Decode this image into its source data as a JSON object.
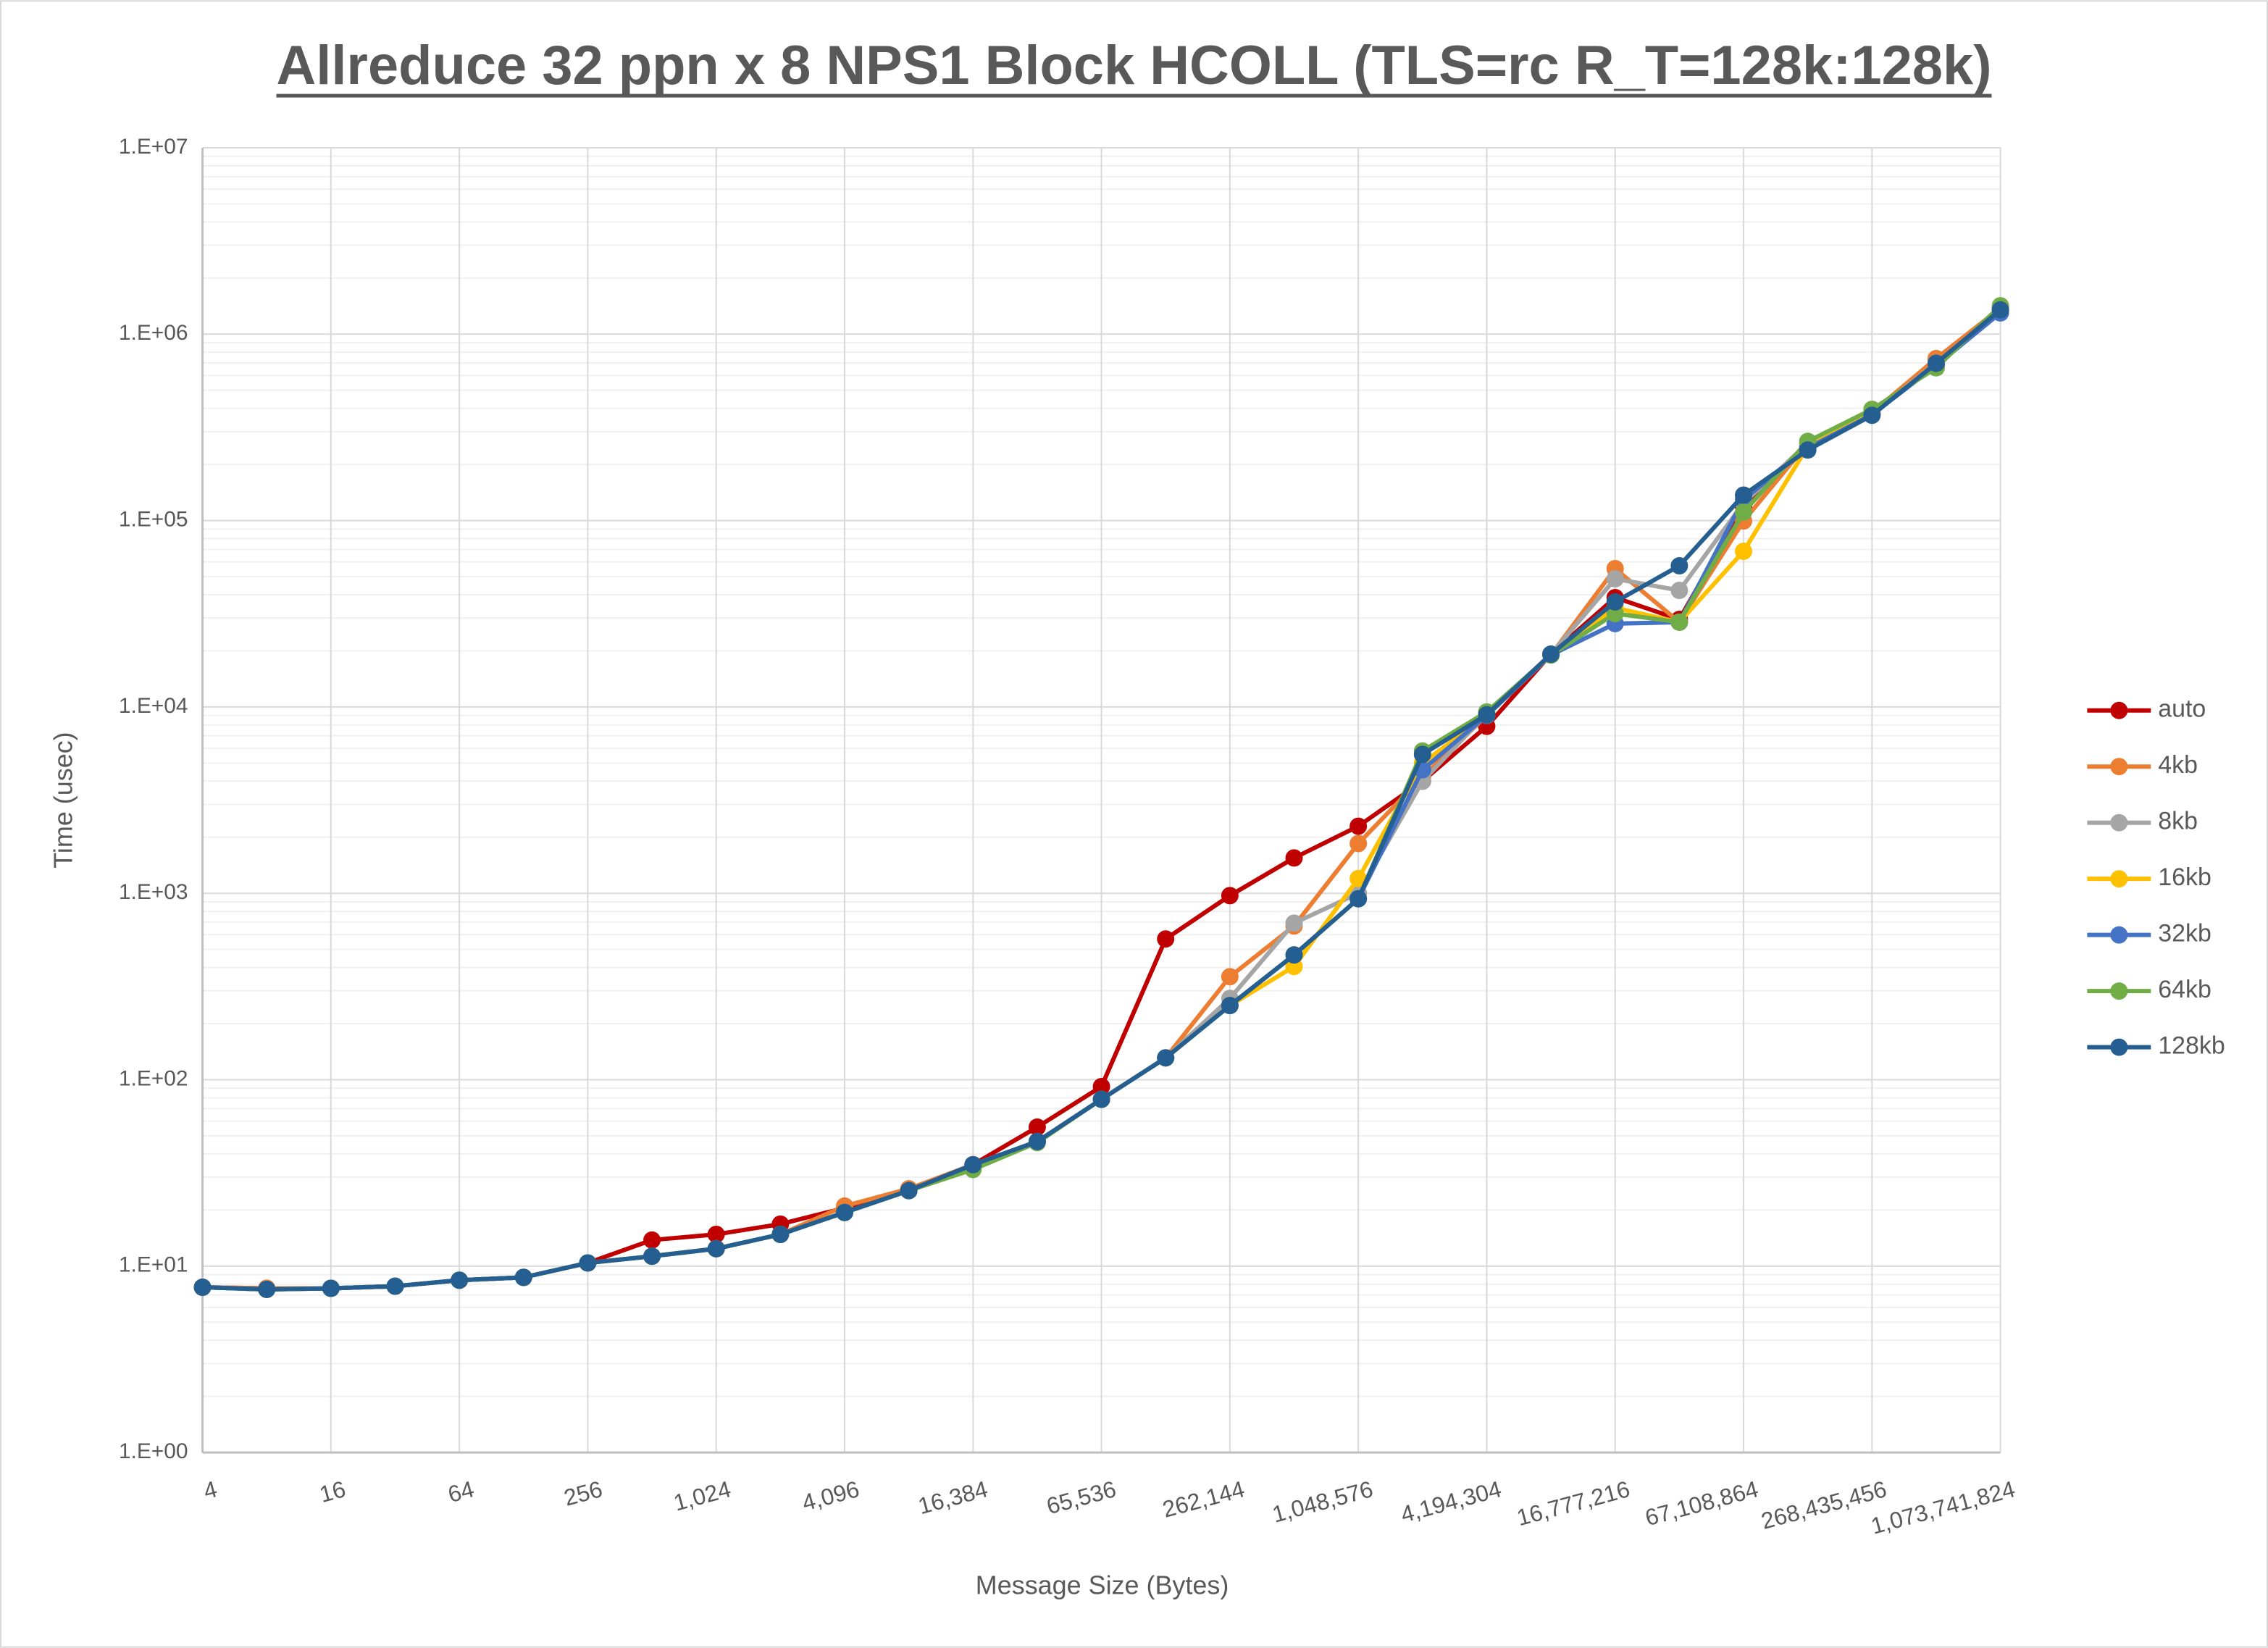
{
  "chart_data": {
    "type": "line",
    "title": "Allreduce 32 ppn x 8 NPS1 Block HCOLL (TLS=rc R_T=128k:128k)",
    "x_label": "Message Size (Bytes)",
    "y_label": "Time (usec)",
    "log_y": true,
    "grid": true,
    "legend": "right",
    "categories": [
      "4",
      null,
      "16",
      null,
      "64",
      null,
      "256",
      null,
      "1,024",
      null,
      "4,096",
      null,
      "16,384",
      null,
      "65,536",
      null,
      "262,144",
      null,
      "1,048,576",
      null,
      "4,194,304",
      null,
      "16,777,216",
      null,
      "67,108,864",
      null,
      "268,435,456",
      null,
      "1,073,741,824"
    ],
    "ylim": [
      1,
      10000000
    ],
    "yticks": [
      {
        "value": 1,
        "label": "1.E+00"
      },
      {
        "value": 10,
        "label": "1.E+01"
      },
      {
        "value": 100,
        "label": "1.E+02"
      },
      {
        "value": 1000,
        "label": "1.E+03"
      },
      {
        "value": 10000,
        "label": "1.E+04"
      },
      {
        "value": 100000,
        "label": "1.E+05"
      },
      {
        "value": 1000000,
        "label": "1.E+06"
      },
      {
        "value": 10000000,
        "label": "1.E+07"
      }
    ],
    "series": [
      {
        "name": "auto",
        "color": "#c00000",
        "values": [
          7.7,
          7.6,
          7.6,
          7.8,
          8.4,
          8.7,
          10.4,
          13.8,
          14.8,
          16.8,
          20.5,
          25.8,
          35,
          55.7,
          91.9,
          569,
          972,
          1548,
          2291,
          4000,
          7870,
          19200,
          38600,
          29500,
          119000,
          250000,
          380000,
          730000,
          1380000
        ]
      },
      {
        "name": "4kb",
        "color": "#ed7d31",
        "values": [
          7.7,
          7.6,
          7.6,
          7.8,
          8.4,
          8.7,
          10.4,
          11.3,
          12.4,
          14.8,
          21,
          26,
          35,
          46.6,
          78.5,
          131,
          357,
          668,
          1850,
          4200,
          9000,
          19000,
          55200,
          28500,
          99500,
          260000,
          380000,
          740000,
          1380000
        ]
      },
      {
        "name": "8kb",
        "color": "#a5a5a5",
        "values": [
          7.7,
          7.5,
          7.6,
          7.8,
          8.4,
          8.7,
          10.4,
          11.3,
          12.4,
          14.8,
          19.4,
          25.4,
          35,
          46.6,
          78.5,
          131,
          273,
          692,
          1000,
          3990,
          9200,
          19200,
          48700,
          42200,
          124000,
          260000,
          375000,
          700000,
          1350000
        ]
      },
      {
        "name": "16kb",
        "color": "#ffc000",
        "values": [
          7.7,
          7.5,
          7.6,
          7.8,
          8.4,
          8.7,
          10.4,
          11.3,
          12.4,
          14.8,
          19.4,
          25.4,
          35,
          46.6,
          78.5,
          131,
          250,
          405,
          1200,
          5000,
          9000,
          19000,
          34000,
          28500,
          68400,
          250000,
          375000,
          690000,
          1360000
        ]
      },
      {
        "name": "32kb",
        "color": "#4472c4",
        "values": [
          7.7,
          7.5,
          7.6,
          7.8,
          8.4,
          8.7,
          10.4,
          11.3,
          12.4,
          14.8,
          19.4,
          25.4,
          35,
          46.6,
          78.5,
          131,
          250,
          467,
          935,
          4600,
          9000,
          19000,
          28000,
          28500,
          130000,
          245000,
          370000,
          680000,
          1300000
        ]
      },
      {
        "name": "64kb",
        "color": "#70ad47",
        "values": [
          7.7,
          7.5,
          7.6,
          7.8,
          8.4,
          8.7,
          10.4,
          11.3,
          12.4,
          14.8,
          19.4,
          25.4,
          33,
          46,
          78.5,
          131,
          250,
          467,
          935,
          5800,
          9400,
          19000,
          31700,
          28500,
          111000,
          266000,
          395000,
          660000,
          1420000
        ]
      },
      {
        "name": "128kb",
        "color": "#255e91",
        "values": [
          7.7,
          7.5,
          7.6,
          7.8,
          8.4,
          8.7,
          10.4,
          11.3,
          12.4,
          14.8,
          19.4,
          25.4,
          35,
          46.6,
          78.5,
          131,
          250,
          467,
          935,
          5560,
          9080,
          19200,
          36600,
          57200,
          137000,
          239000,
          367000,
          698000,
          1350000
        ]
      }
    ]
  }
}
